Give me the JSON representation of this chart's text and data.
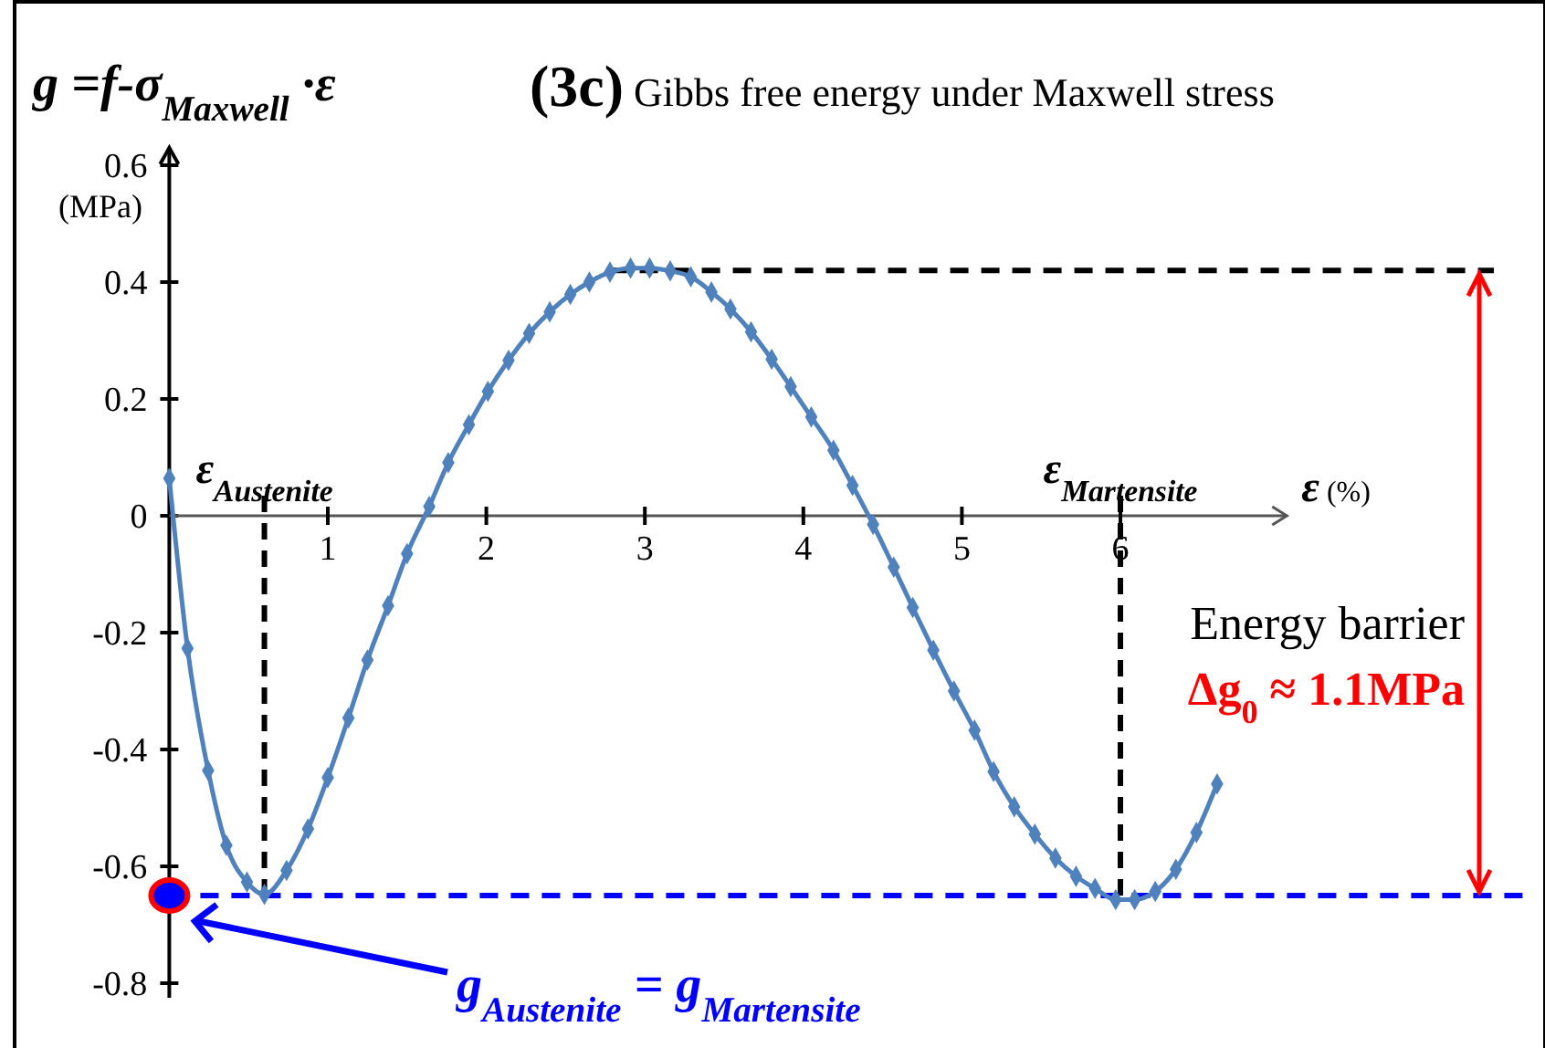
{
  "chart_data": {
    "type": "line",
    "title": "(3c) Gibbs free energy under Maxwell stress",
    "ylabel": "g =f-σ$_{Maxwell}$·ε",
    "xlabel": "ε (%)",
    "annotations": [
      "(MPa)",
      "Energy barrier",
      "Δg$_{0}$ ≈ 1.1MPa",
      "g$_{Austenite}$ = g$_{Martensite}$"
    ],
    "xlim": [
      0,
      7.05
    ],
    "ylim": [
      -0.825,
      0.63
    ],
    "xticks": [
      1,
      2,
      3,
      4,
      5,
      6
    ],
    "yticks": [
      -0.8,
      -0.6,
      -0.4,
      -0.2,
      0,
      0.2,
      0.4,
      0.6
    ],
    "grid": false,
    "marker": "diamond",
    "line_style": "solid",
    "ref_lines": [
      {
        "axis": "x",
        "value": 0.6,
        "label": "ε$_{Austenite}$",
        "color": "#000000",
        "line_style": "dashed"
      },
      {
        "axis": "x",
        "value": 6.0,
        "label": "ε$_{Martensite}$",
        "color": "#000000",
        "line_style": "dashed"
      },
      {
        "axis": "y",
        "value": 0.42,
        "color": "#000000",
        "line_style": "dashed"
      },
      {
        "axis": "y",
        "value": -0.65,
        "color": "#0000ff",
        "line_style": "dashed"
      }
    ],
    "series": [
      {
        "color": "#4f81bd",
        "x": [
          0,
          0.115,
          0.245,
          0.36,
          0.49,
          0.6,
          0.74,
          0.875,
          1.0,
          1.13,
          1.25,
          1.38,
          1.5,
          1.64,
          1.76,
          1.89,
          2.01,
          2.14,
          2.27,
          2.4,
          2.53,
          2.65,
          2.78,
          2.91,
          3.03,
          3.16,
          3.29,
          3.42,
          3.54,
          3.67,
          3.8,
          3.92,
          4.05,
          4.19,
          4.31,
          4.44,
          4.57,
          4.69,
          4.82,
          4.95,
          5.08,
          5.2,
          5.33,
          5.46,
          5.59,
          5.72,
          5.84,
          5.97,
          6.09,
          6.22,
          6.35,
          6.48,
          6.61
        ],
        "values": [
          0.064,
          -0.227,
          -0.436,
          -0.564,
          -0.627,
          -0.648,
          -0.607,
          -0.536,
          -0.448,
          -0.346,
          -0.247,
          -0.154,
          -0.065,
          0.016,
          0.091,
          0.156,
          0.213,
          0.266,
          0.312,
          0.349,
          0.379,
          0.4,
          0.417,
          0.424,
          0.424,
          0.419,
          0.409,
          0.383,
          0.354,
          0.315,
          0.268,
          0.221,
          0.169,
          0.112,
          0.052,
          -0.015,
          -0.088,
          -0.157,
          -0.23,
          -0.3,
          -0.367,
          -0.438,
          -0.498,
          -0.545,
          -0.586,
          -0.617,
          -0.638,
          -0.657,
          -0.657,
          -0.643,
          -0.605,
          -0.542,
          -0.459
        ]
      },
      {
        "type": "scatter",
        "marker": "circle",
        "color": "#0000ff",
        "x": [
          0
        ],
        "values": [
          -0.65
        ]
      }
    ]
  }
}
